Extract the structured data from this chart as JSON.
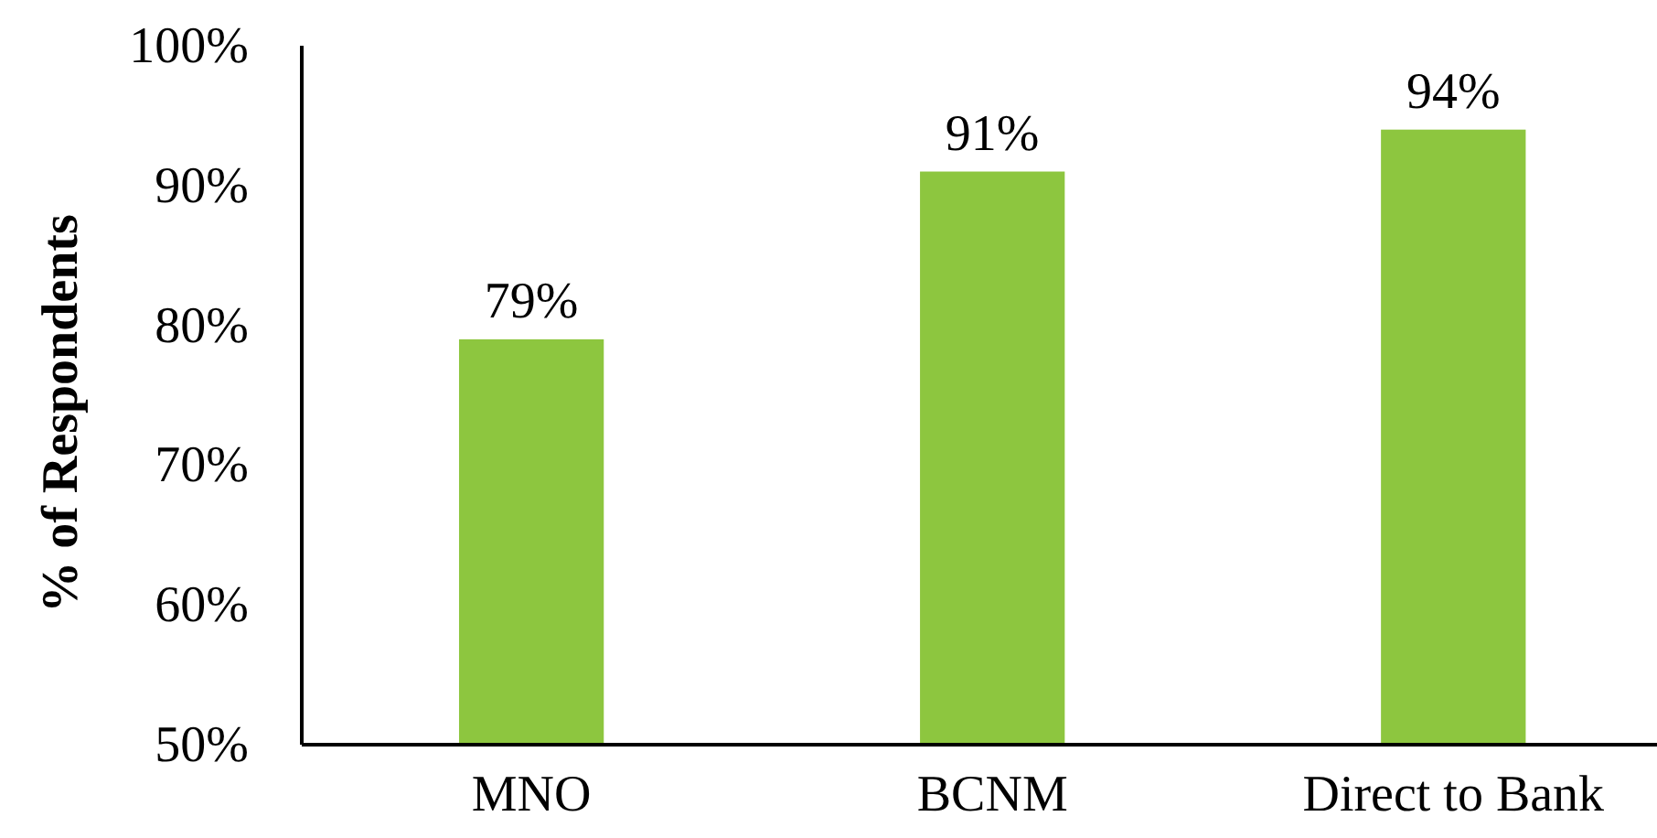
{
  "chart_data": {
    "type": "bar",
    "ylabel": "% of Respondents",
    "categories": [
      "MNO",
      "BCNM",
      "Direct to Bank"
    ],
    "values": [
      79,
      91,
      94
    ],
    "value_labels": [
      "79%",
      "91%",
      "94%"
    ],
    "color": "#8dc63f",
    "ylim": [
      50,
      100
    ],
    "yticks": [
      {
        "value": 50,
        "label": "50%"
      },
      {
        "value": 60,
        "label": "60%"
      },
      {
        "value": 70,
        "label": "70%"
      },
      {
        "value": 80,
        "label": "80%"
      },
      {
        "value": 90,
        "label": "90%"
      },
      {
        "value": 100,
        "label": "100%"
      }
    ],
    "grid": false
  }
}
